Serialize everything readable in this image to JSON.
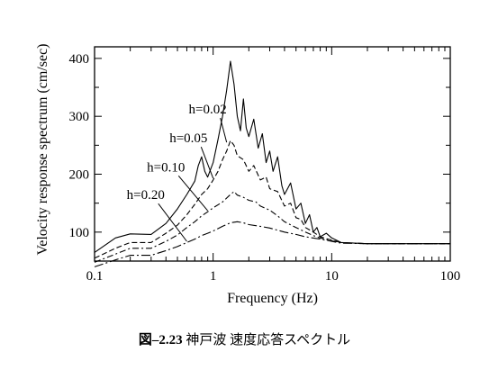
{
  "chart_data": {
    "type": "line",
    "title": "",
    "xlabel": "Frequency (Hz)",
    "ylabel": "Velocity response spectrum (cm/sec)",
    "xscale": "log",
    "xlim": [
      0.1,
      100
    ],
    "ylim": [
      50,
      420
    ],
    "x_ticks": [
      0.1,
      1,
      10,
      100
    ],
    "x_tick_labels": [
      "0.1",
      "1",
      "10",
      "100"
    ],
    "y_ticks": [
      100,
      200,
      300,
      400
    ],
    "y_tick_labels": [
      "100",
      "200",
      "300",
      "400"
    ],
    "grid": false,
    "legend": "annotations with leader lines",
    "series": [
      {
        "name": "h=0.02",
        "dash": "solid",
        "points": [
          [
            0.1,
            65
          ],
          [
            0.15,
            90
          ],
          [
            0.2,
            97
          ],
          [
            0.3,
            96
          ],
          [
            0.4,
            115
          ],
          [
            0.5,
            140
          ],
          [
            0.6,
            165
          ],
          [
            0.7,
            188
          ],
          [
            0.75,
            215
          ],
          [
            0.8,
            230
          ],
          [
            0.85,
            205
          ],
          [
            0.9,
            195
          ],
          [
            1.0,
            220
          ],
          [
            1.1,
            260
          ],
          [
            1.2,
            300
          ],
          [
            1.3,
            345
          ],
          [
            1.4,
            395
          ],
          [
            1.5,
            355
          ],
          [
            1.6,
            300
          ],
          [
            1.7,
            275
          ],
          [
            1.8,
            330
          ],
          [
            1.9,
            280
          ],
          [
            2.0,
            265
          ],
          [
            2.2,
            295
          ],
          [
            2.4,
            245
          ],
          [
            2.6,
            270
          ],
          [
            2.8,
            220
          ],
          [
            3.0,
            240
          ],
          [
            3.2,
            205
          ],
          [
            3.5,
            230
          ],
          [
            3.8,
            180
          ],
          [
            4.0,
            165
          ],
          [
            4.5,
            185
          ],
          [
            5.0,
            140
          ],
          [
            5.5,
            150
          ],
          [
            6.0,
            115
          ],
          [
            6.5,
            130
          ],
          [
            7.0,
            100
          ],
          [
            7.5,
            108
          ],
          [
            8.0,
            92
          ],
          [
            9.0,
            98
          ],
          [
            10.0,
            90
          ],
          [
            12.0,
            82
          ],
          [
            20.0,
            80
          ],
          [
            50.0,
            80
          ],
          [
            100.0,
            80
          ]
        ]
      },
      {
        "name": "h=0.05",
        "dash": "dashed",
        "points": [
          [
            0.1,
            55
          ],
          [
            0.15,
            72
          ],
          [
            0.2,
            82
          ],
          [
            0.3,
            82
          ],
          [
            0.4,
            98
          ],
          [
            0.5,
            112
          ],
          [
            0.6,
            130
          ],
          [
            0.7,
            148
          ],
          [
            0.8,
            165
          ],
          [
            0.9,
            175
          ],
          [
            1.0,
            190
          ],
          [
            1.1,
            205
          ],
          [
            1.2,
            225
          ],
          [
            1.3,
            240
          ],
          [
            1.4,
            258
          ],
          [
            1.5,
            250
          ],
          [
            1.6,
            232
          ],
          [
            1.8,
            225
          ],
          [
            2.0,
            205
          ],
          [
            2.2,
            215
          ],
          [
            2.5,
            190
          ],
          [
            2.8,
            195
          ],
          [
            3.0,
            175
          ],
          [
            3.5,
            170
          ],
          [
            4.0,
            145
          ],
          [
            4.5,
            150
          ],
          [
            5.0,
            125
          ],
          [
            5.5,
            122
          ],
          [
            6.0,
            108
          ],
          [
            7.0,
            100
          ],
          [
            8.0,
            92
          ],
          [
            10.0,
            86
          ],
          [
            12.0,
            82
          ],
          [
            20.0,
            80
          ],
          [
            100.0,
            80
          ]
        ]
      },
      {
        "name": "h=0.10",
        "dash": "dashdot",
        "points": [
          [
            0.1,
            48
          ],
          [
            0.15,
            62
          ],
          [
            0.2,
            72
          ],
          [
            0.3,
            72
          ],
          [
            0.4,
            84
          ],
          [
            0.5,
            95
          ],
          [
            0.6,
            108
          ],
          [
            0.7,
            118
          ],
          [
            0.8,
            128
          ],
          [
            0.9,
            135
          ],
          [
            1.0,
            142
          ],
          [
            1.2,
            152
          ],
          [
            1.4,
            165
          ],
          [
            1.5,
            170
          ],
          [
            1.6,
            164
          ],
          [
            1.8,
            160
          ],
          [
            2.0,
            155
          ],
          [
            2.3,
            152
          ],
          [
            2.5,
            145
          ],
          [
            3.0,
            138
          ],
          [
            3.5,
            128
          ],
          [
            4.0,
            118
          ],
          [
            5.0,
            108
          ],
          [
            6.0,
            100
          ],
          [
            7.0,
            94
          ],
          [
            8.0,
            90
          ],
          [
            10.0,
            85
          ],
          [
            12.0,
            82
          ],
          [
            20.0,
            80
          ],
          [
            100.0,
            80
          ]
        ]
      },
      {
        "name": "h=0.20",
        "dash": "longdashdot",
        "points": [
          [
            0.1,
            40
          ],
          [
            0.15,
            52
          ],
          [
            0.2,
            60
          ],
          [
            0.3,
            60
          ],
          [
            0.4,
            68
          ],
          [
            0.5,
            75
          ],
          [
            0.6,
            82
          ],
          [
            0.7,
            88
          ],
          [
            0.8,
            94
          ],
          [
            0.9,
            98
          ],
          [
            1.0,
            102
          ],
          [
            1.2,
            110
          ],
          [
            1.4,
            116
          ],
          [
            1.6,
            118
          ],
          [
            1.8,
            116
          ],
          [
            2.0,
            113
          ],
          [
            2.5,
            110
          ],
          [
            3.0,
            107
          ],
          [
            4.0,
            100
          ],
          [
            5.0,
            96
          ],
          [
            6.0,
            92
          ],
          [
            8.0,
            88
          ],
          [
            10.0,
            84
          ],
          [
            12.0,
            81
          ],
          [
            20.0,
            80
          ],
          [
            100.0,
            80
          ]
        ]
      }
    ],
    "label_positions": [
      {
        "text": "h=0.02",
        "x": 0.9,
        "y": 305,
        "pointer_x": 1.3,
        "pointer_y": 255
      },
      {
        "text": "h=0.05",
        "x": 0.62,
        "y": 255,
        "pointer_x": 1.0,
        "pointer_y": 193
      },
      {
        "text": "h=0.10",
        "x": 0.4,
        "y": 205,
        "pointer_x": 0.9,
        "pointer_y": 137
      },
      {
        "text": "h=0.20",
        "x": 0.27,
        "y": 157,
        "pointer_x": 0.6,
        "pointer_y": 84
      }
    ]
  },
  "caption": {
    "figure_number": "図–2.23",
    "text": "神戸波 速度応答スペクトル"
  }
}
